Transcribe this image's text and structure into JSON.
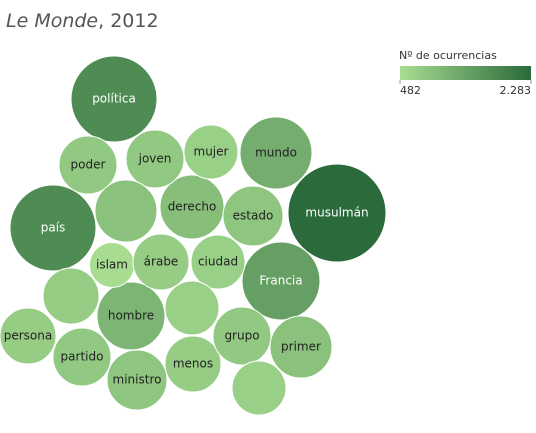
{
  "chart_data": {
    "type": "bubble",
    "title": {
      "publication": "Le Monde",
      "rest": ", 2012"
    },
    "legend_title": "Nº de ocurrencias",
    "categories": [
      "política",
      "musulmán",
      "país",
      "mundo",
      "Francia",
      "derecho",
      "hombre",
      "poder",
      "joven",
      "mujer",
      "estado",
      null,
      "islam",
      "árabe",
      "ciudad",
      null,
      null,
      "persona",
      "partido",
      "ministro",
      "menos",
      "grupo",
      "primer",
      null
    ],
    "values": [
      1758,
      2283,
      1758,
      1232,
      1446,
      974,
      1099,
      800,
      800,
      693,
      856,
      914,
      482,
      746,
      693,
      746,
      693,
      746,
      800,
      856,
      746,
      800,
      914,
      693
    ],
    "color_range": [
      "#a8dd91",
      "#2a6a3b"
    ],
    "clim": [
      482,
      2283
    ],
    "cticks": [
      482,
      {
        "value": 2283,
        "label": "2.283"
      }
    ]
  }
}
